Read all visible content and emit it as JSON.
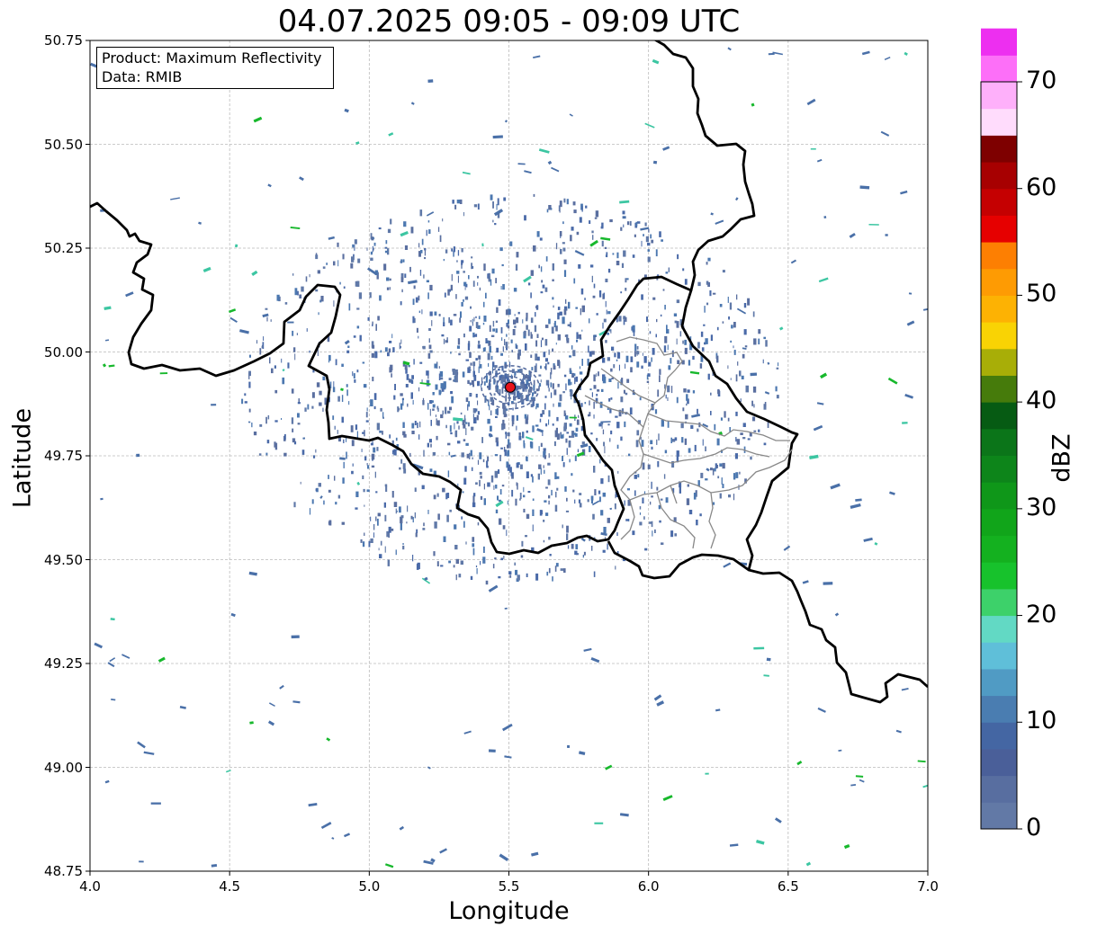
{
  "title": "04.07.2025 09:05 - 09:09 UTC",
  "xlabel": "Longitude",
  "ylabel": "Latitude",
  "info": {
    "product_line": "Product: Maximum Reflectivity",
    "data_line": "Data: RMIB"
  },
  "colorbar": {
    "label": "dBZ",
    "ticks": [
      "0",
      "10",
      "20",
      "30",
      "40",
      "50",
      "60",
      "70"
    ],
    "min": 0,
    "max": 70,
    "step": 2.5,
    "colors": [
      "#6279a6",
      "#586ea0",
      "#4a5f99",
      "#4466a3",
      "#4a7db1",
      "#509bc4",
      "#5fbfd9",
      "#62d9c4",
      "#3dd16a",
      "#17c22c",
      "#14b11f",
      "#11a51a",
      "#0f9719",
      "#0d851a",
      "#0b7519",
      "#065b13",
      "#467b0b",
      "#a8ae07",
      "#f9d304",
      "#fdb203",
      "#fe9b03",
      "#fd7f02",
      "#e60000",
      "#c50001",
      "#a70001",
      "#7e0000",
      "#ffdcfc",
      "#feb0fa",
      "#fd6ff8",
      "#ed2ff0"
    ]
  },
  "map": {
    "x_ticks": [
      "4.0",
      "4.5",
      "5.0",
      "5.5",
      "6.0",
      "6.5",
      "7.0"
    ],
    "y_ticks": [
      "50.75",
      "50.50",
      "50.25",
      "50.00",
      "49.75",
      "49.50",
      "49.25",
      "49.00",
      "48.75"
    ],
    "xlim": [
      4.0,
      7.0
    ],
    "ylim": [
      48.75,
      50.75
    ],
    "grid": true,
    "radar_site": {
      "lon": 5.505,
      "lat": 49.915,
      "color": "#e8141c"
    }
  }
}
